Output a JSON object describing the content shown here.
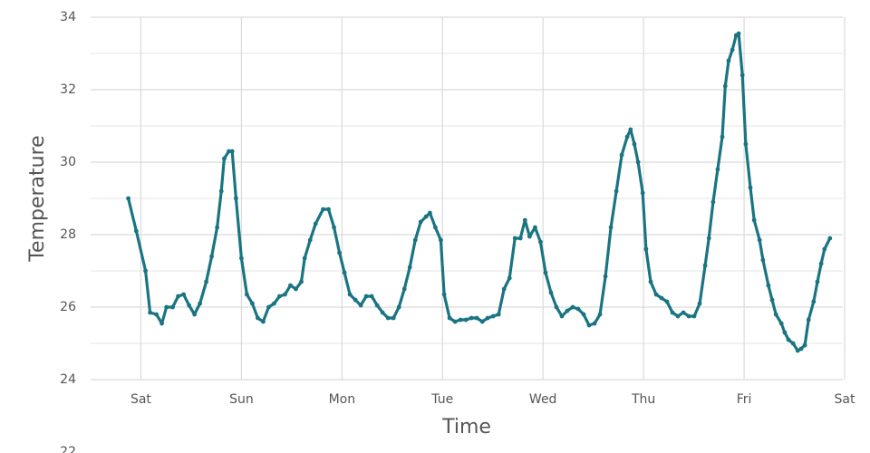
{
  "chart_data": {
    "type": "line",
    "x_label": "Time",
    "y_label": "Temperature",
    "x": [
      -3.0,
      -1.1,
      1.1,
      2.2,
      3.7,
      5.0,
      6.1,
      7.6,
      8.9,
      10.2,
      11.5,
      12.8,
      14.1,
      15.6,
      16.9,
      18.2,
      19.2,
      19.9,
      21.0,
      21.8,
      22.7,
      24.0,
      25.3,
      26.6,
      27.9,
      29.2,
      30.5,
      31.8,
      33.1,
      34.4,
      35.7,
      37.0,
      38.3,
      39.1,
      40.4,
      41.7,
      43.5,
      44.8,
      46.1,
      47.4,
      48.6,
      49.9,
      51.2,
      52.5,
      53.8,
      55.1,
      56.4,
      57.7,
      59.0,
      60.3,
      61.6,
      62.9,
      64.2,
      65.5,
      66.8,
      68.1,
      69.0,
      70.3,
      71.6,
      72.4,
      73.7,
      75.0,
      76.3,
      77.6,
      78.9,
      80.2,
      81.5,
      82.8,
      84.1,
      85.4,
      86.7,
      88.0,
      89.3,
      90.6,
      91.7,
      92.8,
      94.1,
      95.4,
      96.6,
      97.9,
      99.2,
      100.5,
      101.8,
      103.1,
      104.4,
      105.7,
      107.0,
      108.3,
      109.6,
      110.9,
      112.2,
      113.5,
      114.8,
      116.1,
      116.9,
      117.8,
      118.7,
      119.8,
      120.6,
      121.7,
      123.0,
      124.3,
      125.6,
      126.9,
      128.2,
      129.5,
      130.8,
      132.1,
      133.4,
      134.7,
      135.6,
      136.6,
      137.7,
      138.8,
      139.5,
      140.3,
      141.2,
      142.1,
      142.7,
      143.6,
      144.4,
      145.5,
      146.4,
      147.7,
      148.5,
      149.8,
      150.7,
      151.6,
      152.9,
      153.7,
      154.6,
      155.7,
      156.8,
      157.6,
      158.5,
      159.4,
      160.6,
      161.5,
      162.4,
      163.2,
      164.5
    ],
    "series": [
      {
        "color": "#1a7481",
        "values": [
          29.0,
          28.1,
          27.0,
          25.85,
          25.8,
          25.55,
          26.0,
          26.0,
          26.3,
          26.35,
          26.05,
          25.8,
          26.1,
          26.7,
          27.4,
          28.2,
          29.2,
          30.1,
          30.3,
          30.3,
          29.0,
          27.35,
          26.35,
          26.1,
          25.7,
          25.6,
          26.0,
          26.1,
          26.3,
          26.35,
          26.6,
          26.5,
          26.7,
          27.35,
          27.85,
          28.3,
          28.7,
          28.7,
          28.2,
          27.5,
          26.95,
          26.35,
          26.2,
          26.05,
          26.3,
          26.3,
          26.05,
          25.85,
          25.7,
          25.7,
          26.0,
          26.5,
          27.1,
          27.85,
          28.35,
          28.5,
          28.6,
          28.2,
          27.85,
          26.35,
          25.7,
          25.6,
          25.65,
          25.65,
          25.7,
          25.7,
          25.6,
          25.7,
          25.75,
          25.8,
          26.5,
          26.8,
          27.9,
          27.9,
          28.4,
          27.95,
          28.2,
          27.8,
          26.95,
          26.4,
          26.0,
          25.75,
          25.9,
          26.0,
          25.95,
          25.8,
          25.5,
          25.55,
          25.8,
          26.85,
          28.2,
          29.2,
          30.2,
          30.7,
          30.9,
          30.5,
          30.0,
          29.15,
          27.6,
          26.7,
          26.35,
          26.25,
          26.15,
          25.85,
          25.75,
          25.85,
          25.75,
          25.75,
          26.1,
          27.15,
          27.9,
          28.9,
          29.8,
          30.7,
          32.1,
          32.8,
          33.1,
          33.5,
          33.55,
          32.4,
          30.5,
          29.3,
          28.4,
          27.85,
          27.3,
          26.6,
          26.2,
          25.8,
          25.55,
          25.3,
          25.1,
          25.0,
          24.8,
          24.85,
          24.95,
          25.65,
          26.15,
          26.7,
          27.2,
          27.6,
          27.9
        ]
      }
    ],
    "xlim": [
      -12,
      168
    ],
    "xticks": [
      {
        "value": 0,
        "label": "Sat"
      },
      {
        "value": 24,
        "label": "Sun"
      },
      {
        "value": 48,
        "label": "Mon"
      },
      {
        "value": 72,
        "label": "Tue"
      },
      {
        "value": 96,
        "label": "Wed"
      },
      {
        "value": 120,
        "label": "Thu"
      },
      {
        "value": 144,
        "label": "Fri"
      },
      {
        "value": 168,
        "label": "Sat"
      }
    ],
    "ylim": [
      24,
      34
    ],
    "yticks": [
      22,
      24,
      26,
      28,
      30,
      32,
      34
    ],
    "minor_yticks": [
      25,
      27,
      29,
      31,
      33
    ],
    "grid": true
  }
}
